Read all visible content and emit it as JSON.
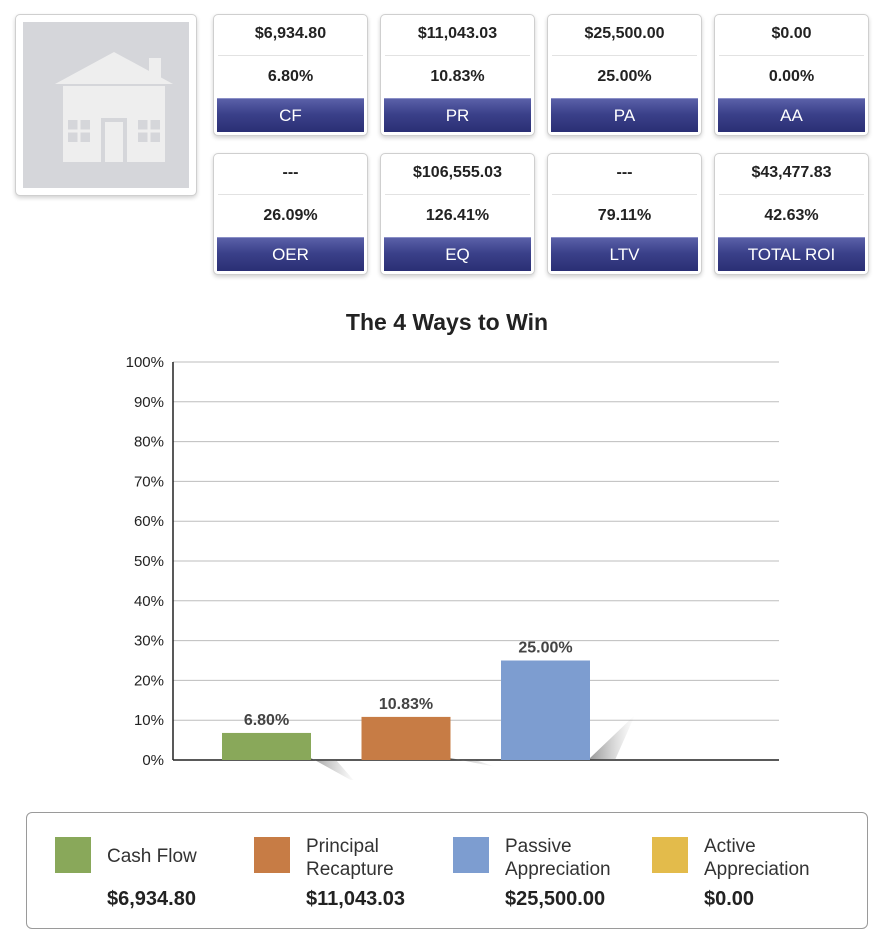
{
  "metrics_row1": [
    {
      "value": "$6,934.80",
      "percent": "6.80%",
      "label": "CF"
    },
    {
      "value": "$11,043.03",
      "percent": "10.83%",
      "label": "PR"
    },
    {
      "value": "$25,500.00",
      "percent": "25.00%",
      "label": "PA"
    },
    {
      "value": "$0.00",
      "percent": "0.00%",
      "label": "AA"
    }
  ],
  "metrics_row2": [
    {
      "value": "---",
      "percent": "26.09%",
      "label": "OER"
    },
    {
      "value": "$106,555.03",
      "percent": "126.41%",
      "label": "EQ"
    },
    {
      "value": "---",
      "percent": "79.11%",
      "label": "LTV"
    },
    {
      "value": "$43,477.83",
      "percent": "42.63%",
      "label": "TOTAL ROI"
    }
  ],
  "chart_data": {
    "type": "bar",
    "title": "The 4 Ways to Win",
    "categories": [
      "Cash Flow",
      "Principal Recapture",
      "Passive Appreciation",
      "Active Appreciation"
    ],
    "values": [
      6.8,
      10.83,
      25.0,
      0.0
    ],
    "data_labels": [
      "6.80%",
      "10.83%",
      "25.00%",
      ""
    ],
    "colors": [
      "#89a85a",
      "#c77c45",
      "#7d9dd0",
      "#e3bb4b"
    ],
    "ylim": [
      0,
      100
    ],
    "y_ticks": [
      "0%",
      "10%",
      "20%",
      "30%",
      "40%",
      "50%",
      "60%",
      "70%",
      "80%",
      "90%",
      "100%"
    ],
    "grid": true,
    "legend_position": "bottom"
  },
  "legend": [
    {
      "name": "Cash Flow",
      "amount": "$6,934.80",
      "color": "#89a85a"
    },
    {
      "name": "Principal Recapture",
      "amount": "$11,043.03",
      "color": "#c77c45"
    },
    {
      "name": "Passive Appreciation",
      "amount": "$25,500.00",
      "color": "#7d9dd0"
    },
    {
      "name": "Active Appreciation",
      "amount": "$0.00",
      "color": "#e3bb4b"
    }
  ],
  "icons": {
    "property_photo": "house-placeholder-icon"
  }
}
